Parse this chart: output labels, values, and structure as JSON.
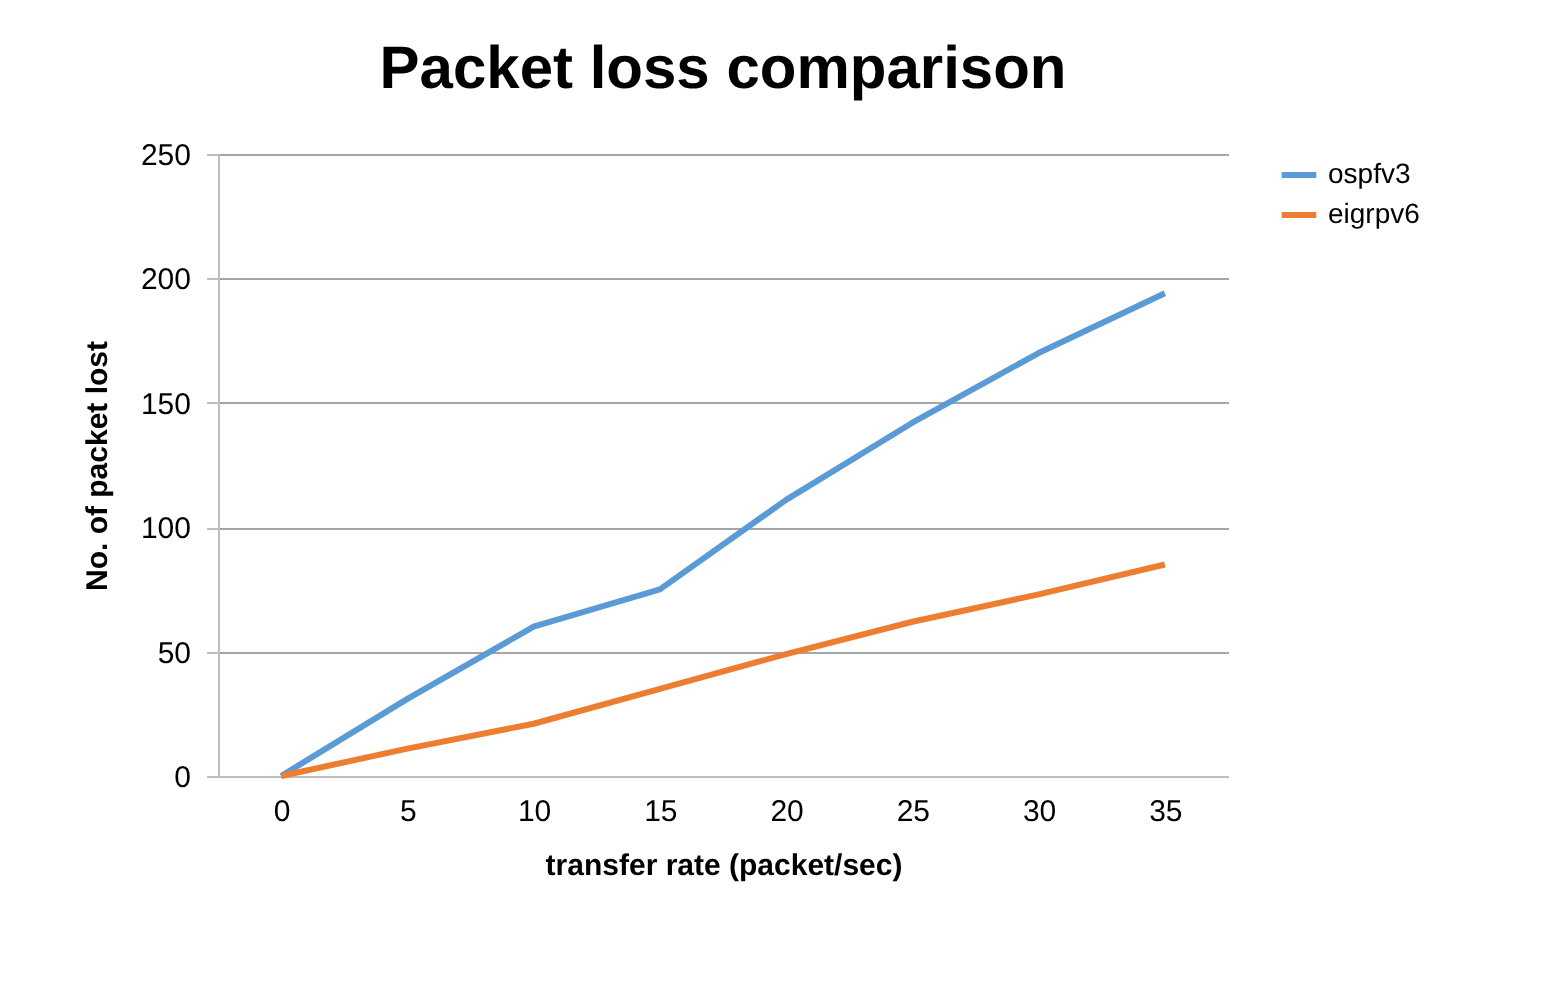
{
  "chart_data": {
    "type": "line",
    "title": "Packet loss comparison",
    "xlabel": "transfer rate (packet/sec)",
    "ylabel": "No. of packet lost",
    "categories": [
      "0",
      "5",
      "10",
      "15",
      "20",
      "25",
      "30",
      "35"
    ],
    "series": [
      {
        "name": "ospfv3",
        "color": "#5b9bd5",
        "values": [
          0,
          31,
          60,
          75,
          111,
          142,
          170,
          194
        ]
      },
      {
        "name": "eigrpv6",
        "color": "#ed7d31",
        "values": [
          0,
          11,
          21,
          35,
          49,
          62,
          73,
          85
        ]
      }
    ],
    "ylim": [
      0,
      250
    ],
    "yticks": [
      0,
      50,
      100,
      150,
      200,
      250
    ],
    "grid": "y",
    "legend": "right",
    "marker": "none"
  }
}
